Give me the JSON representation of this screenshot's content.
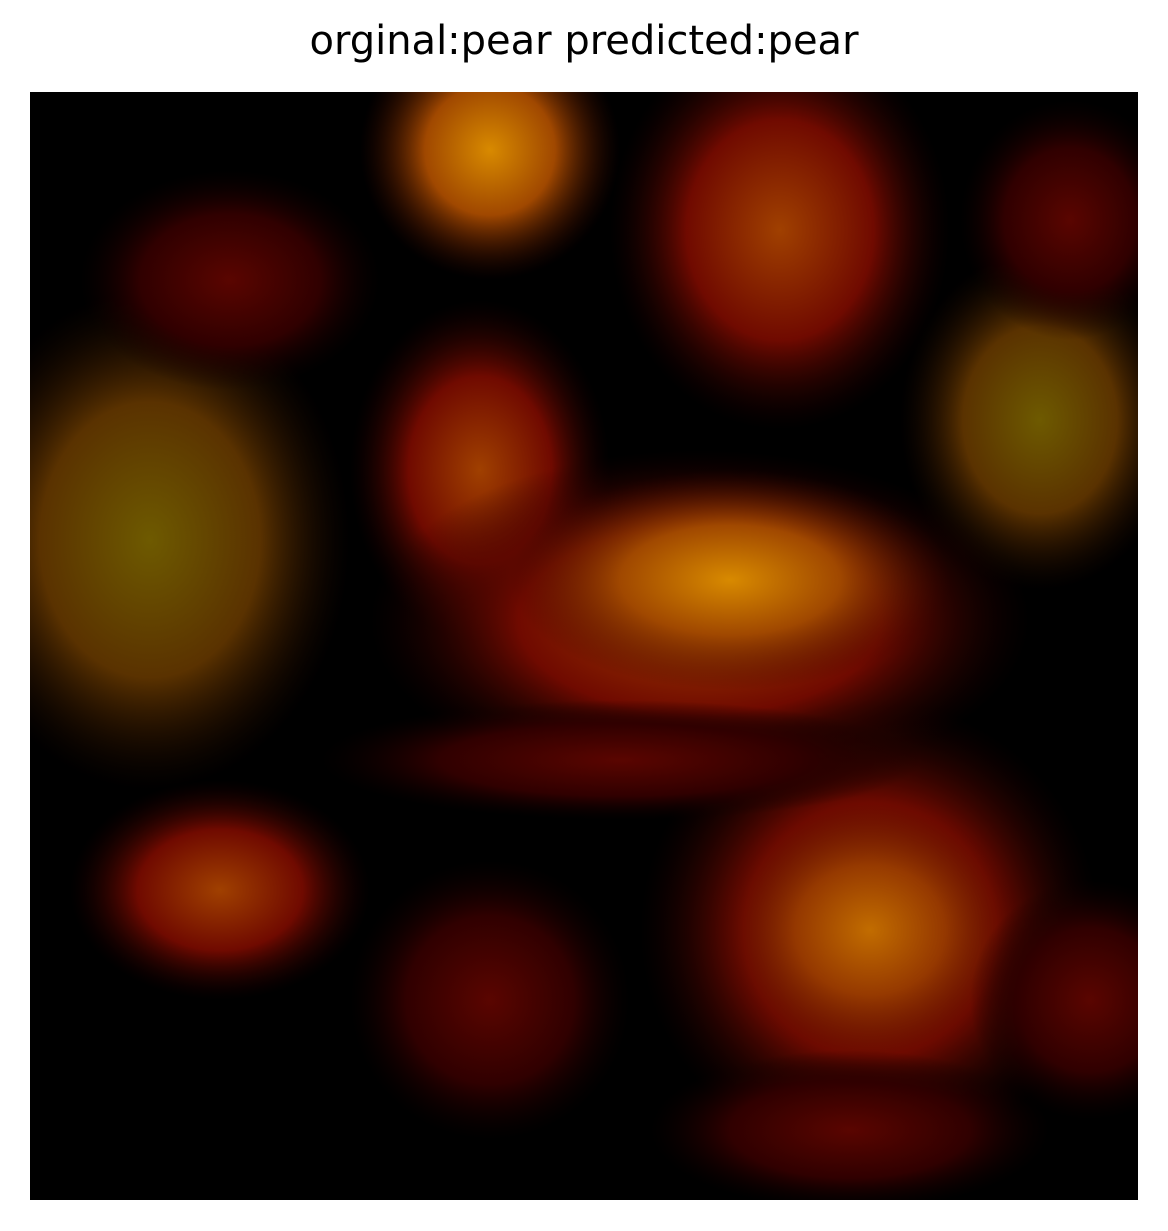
{
  "title": "orginal:pear predicted:pear"
}
